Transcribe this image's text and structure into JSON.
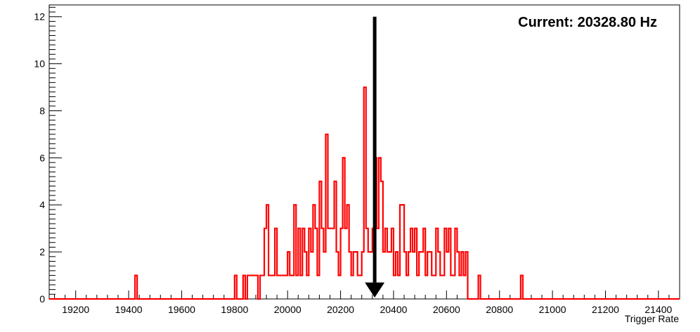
{
  "chart_data": {
    "type": "histogram",
    "title": "",
    "xlabel": "Trigger Rate",
    "ylabel": "",
    "xlim": [
      19100,
      21480
    ],
    "ylim": [
      0,
      12.5
    ],
    "x_ticks": [
      19200,
      19400,
      19600,
      19800,
      20000,
      20200,
      20400,
      20600,
      20800,
      21000,
      21200,
      21400
    ],
    "y_ticks": [
      0,
      2,
      4,
      6,
      8,
      10,
      12
    ],
    "grid": false,
    "bin_width": 8,
    "series": [
      {
        "color": "#ff0000",
        "bins": [
          [
            19424,
            1
          ],
          [
            19800,
            1
          ],
          [
            19832,
            1
          ],
          [
            19848,
            1
          ],
          [
            19856,
            1
          ],
          [
            19864,
            1
          ],
          [
            19872,
            1
          ],
          [
            19880,
            1
          ],
          [
            19896,
            1
          ],
          [
            19904,
            1
          ],
          [
            19912,
            3
          ],
          [
            19920,
            4
          ],
          [
            19928,
            1
          ],
          [
            19936,
            1
          ],
          [
            19944,
            1
          ],
          [
            19952,
            3
          ],
          [
            19960,
            1
          ],
          [
            19968,
            1
          ],
          [
            19976,
            1
          ],
          [
            19984,
            1
          ],
          [
            19992,
            1
          ],
          [
            20000,
            2
          ],
          [
            20008,
            1
          ],
          [
            20016,
            1
          ],
          [
            20024,
            4
          ],
          [
            20032,
            1
          ],
          [
            20040,
            3
          ],
          [
            20048,
            1
          ],
          [
            20056,
            3
          ],
          [
            20064,
            2
          ],
          [
            20072,
            1
          ],
          [
            20080,
            3
          ],
          [
            20088,
            2
          ],
          [
            20096,
            4
          ],
          [
            20104,
            3
          ],
          [
            20112,
            1
          ],
          [
            20120,
            5
          ],
          [
            20128,
            3
          ],
          [
            20136,
            2
          ],
          [
            20144,
            7
          ],
          [
            20152,
            3
          ],
          [
            20160,
            3
          ],
          [
            20168,
            3
          ],
          [
            20176,
            5
          ],
          [
            20184,
            2
          ],
          [
            20192,
            1
          ],
          [
            20200,
            3
          ],
          [
            20208,
            6
          ],
          [
            20216,
            3
          ],
          [
            20224,
            4
          ],
          [
            20232,
            2
          ],
          [
            20240,
            1
          ],
          [
            20248,
            2
          ],
          [
            20256,
            2
          ],
          [
            20264,
            1
          ],
          [
            20272,
            1
          ],
          [
            20280,
            2
          ],
          [
            20288,
            9
          ],
          [
            20296,
            3
          ],
          [
            20304,
            2
          ],
          [
            20312,
            2
          ],
          [
            20320,
            3
          ],
          [
            20328,
            6
          ],
          [
            20336,
            3
          ],
          [
            20344,
            6
          ],
          [
            20352,
            5
          ],
          [
            20360,
            2
          ],
          [
            20368,
            3
          ],
          [
            20376,
            2
          ],
          [
            20384,
            2
          ],
          [
            20392,
            3
          ],
          [
            20400,
            1
          ],
          [
            20408,
            2
          ],
          [
            20416,
            1
          ],
          [
            20424,
            4
          ],
          [
            20432,
            4
          ],
          [
            20440,
            2
          ],
          [
            20448,
            1
          ],
          [
            20456,
            2
          ],
          [
            20464,
            3
          ],
          [
            20472,
            2
          ],
          [
            20480,
            3
          ],
          [
            20488,
            1
          ],
          [
            20496,
            2
          ],
          [
            20504,
            2
          ],
          [
            20512,
            3
          ],
          [
            20520,
            1
          ],
          [
            20528,
            2
          ],
          [
            20536,
            2
          ],
          [
            20544,
            1
          ],
          [
            20552,
            1
          ],
          [
            20560,
            3
          ],
          [
            20568,
            2
          ],
          [
            20576,
            1
          ],
          [
            20584,
            1
          ],
          [
            20592,
            3
          ],
          [
            20600,
            2
          ],
          [
            20608,
            3
          ],
          [
            20616,
            1
          ],
          [
            20624,
            1
          ],
          [
            20632,
            3
          ],
          [
            20640,
            2
          ],
          [
            20648,
            1
          ],
          [
            20656,
            2
          ],
          [
            20664,
            1
          ],
          [
            20672,
            2
          ],
          [
            20720,
            1
          ],
          [
            20880,
            1
          ]
        ]
      }
    ],
    "marker": {
      "x": 20328.8,
      "y_top": 12,
      "color": "#000000"
    },
    "annotation": "Current: 20328.80 Hz"
  }
}
